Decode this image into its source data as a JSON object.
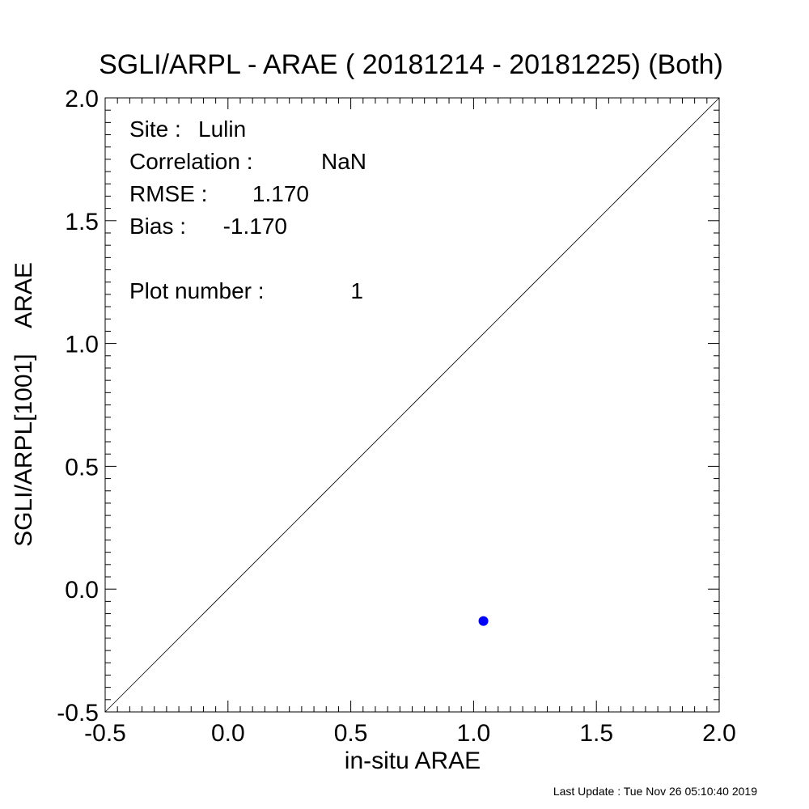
{
  "chart_data": {
    "type": "scatter",
    "title": "SGLI/ARPL - ARAE ( 20181214 - 20181225) (Both)",
    "xlabel": "in-situ ARAE",
    "ylabel": "SGLI/ARPL[1001]    ARAE",
    "xlim": [
      -0.5,
      2.0
    ],
    "ylim": [
      -0.5,
      2.0
    ],
    "x_ticks": [
      "-0.5",
      "0.0",
      "0.5",
      "1.0",
      "1.5",
      "2.0"
    ],
    "y_ticks": [
      "-0.5",
      "0.0",
      "0.5",
      "1.0",
      "1.5",
      "2.0"
    ],
    "grid": false,
    "reference_line": "1:1",
    "point_color": "#0000ff",
    "points": [
      {
        "x": 1.04,
        "y": -0.13
      }
    ],
    "annotations": [
      {
        "label": "Site :",
        "value": "Lulin"
      },
      {
        "label": "Correlation :",
        "value": "NaN"
      },
      {
        "label": "RMSE :",
        "value": "1.170"
      },
      {
        "label": "Bias :",
        "value": "-1.170"
      },
      {
        "label": "Plot number :",
        "value": "1"
      }
    ]
  },
  "footer": {
    "text": "Last Update : Tue Nov 26 05:10:40 2019"
  }
}
